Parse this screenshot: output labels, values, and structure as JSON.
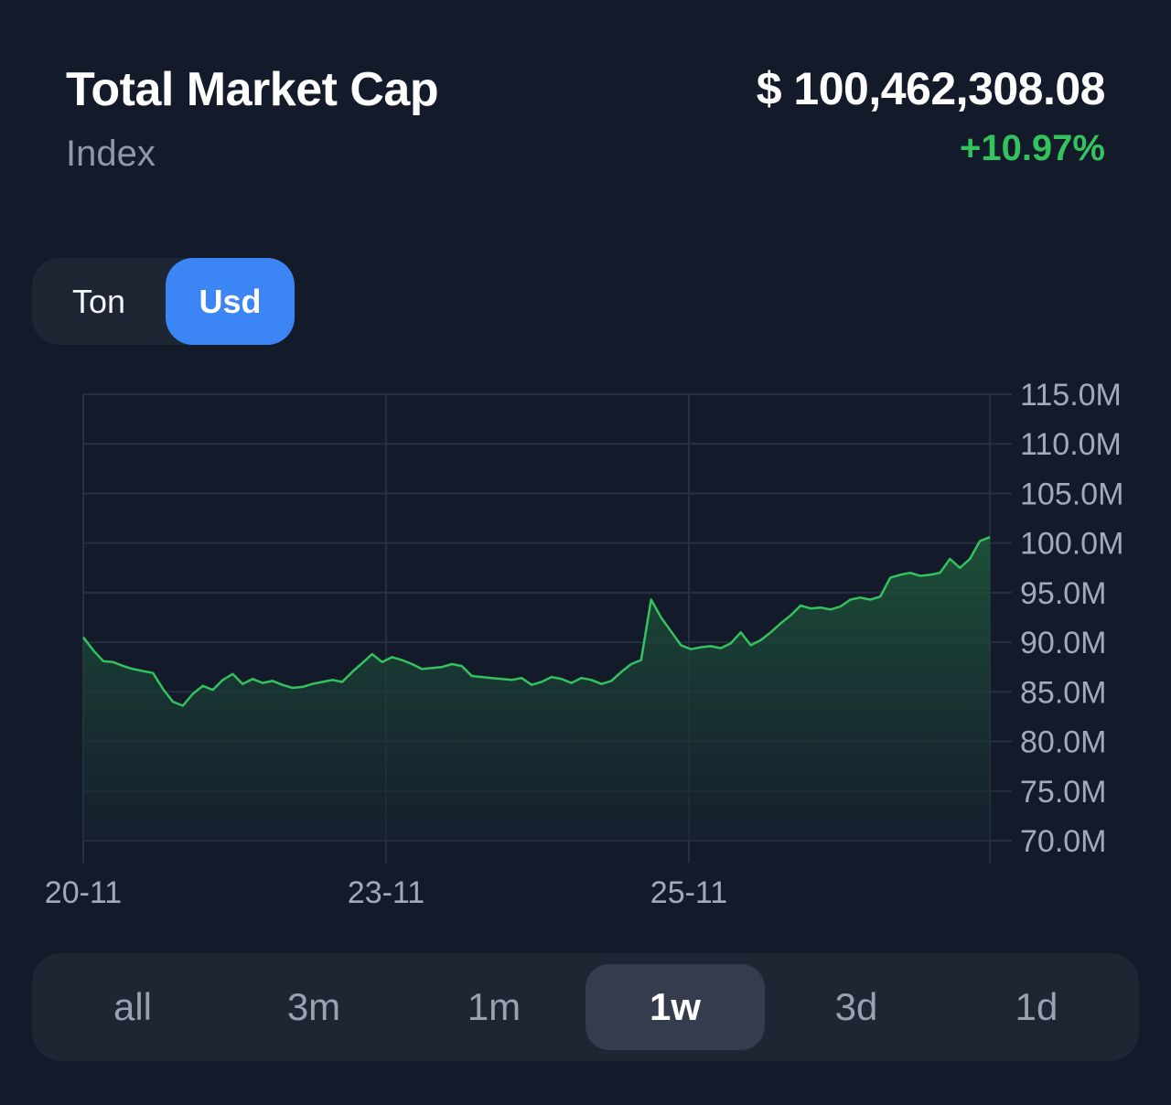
{
  "header": {
    "title": "Total Market Cap",
    "subtitle": "Index",
    "price": "$ 100,462,308.08",
    "change": "+10.97%"
  },
  "currency_toggle": {
    "options": [
      "Ton",
      "Usd"
    ],
    "selected": "Usd"
  },
  "range_selector": {
    "options": [
      "all",
      "3m",
      "1m",
      "1w",
      "3d",
      "1d"
    ],
    "selected": "1w"
  },
  "colors": {
    "background": "#131a29",
    "line": "#33c35e",
    "accent": "#3c85f5",
    "change_positive": "#33c35e"
  },
  "chart_data": {
    "type": "area",
    "title": "",
    "xlabel": "",
    "ylabel": "",
    "y_axis_position": "right",
    "ylim": [
      70,
      115
    ],
    "y_ticks": [
      "115.0M",
      "110.0M",
      "105.0M",
      "100.0M",
      "95.0M",
      "90.0M",
      "85.0M",
      "80.0M",
      "75.0M",
      "70.0M"
    ],
    "x_ticks": [
      "20-11",
      "23-11",
      "25-11"
    ],
    "grid": true,
    "series": [
      {
        "unit": "M USD",
        "values": [
          90.5,
          89.2,
          88.1,
          88.0,
          87.6,
          87.3,
          87.1,
          86.9,
          85.3,
          84.0,
          83.6,
          84.8,
          85.6,
          85.2,
          86.2,
          86.8,
          85.8,
          86.3,
          85.9,
          86.1,
          85.7,
          85.4,
          85.5,
          85.8,
          86.0,
          86.2,
          86.0,
          87.0,
          87.9,
          88.8,
          88.0,
          88.5,
          88.2,
          87.8,
          87.3,
          87.4,
          87.5,
          87.8,
          87.6,
          86.6,
          86.5,
          86.4,
          86.3,
          86.2,
          86.4,
          85.7,
          86.0,
          86.5,
          86.3,
          85.9,
          86.4,
          86.2,
          85.8,
          86.1,
          87.0,
          87.8,
          88.2,
          94.3,
          92.5,
          91.1,
          89.7,
          89.3,
          89.5,
          89.6,
          89.4,
          89.9,
          91.0,
          89.7,
          90.2,
          91.0,
          91.9,
          92.7,
          93.7,
          93.4,
          93.5,
          93.3,
          93.6,
          94.3,
          94.5,
          94.3,
          94.6,
          96.5,
          96.8,
          97.0,
          96.7,
          96.8,
          97.0,
          98.4,
          97.5,
          98.4,
          100.2,
          100.6
        ]
      }
    ]
  }
}
